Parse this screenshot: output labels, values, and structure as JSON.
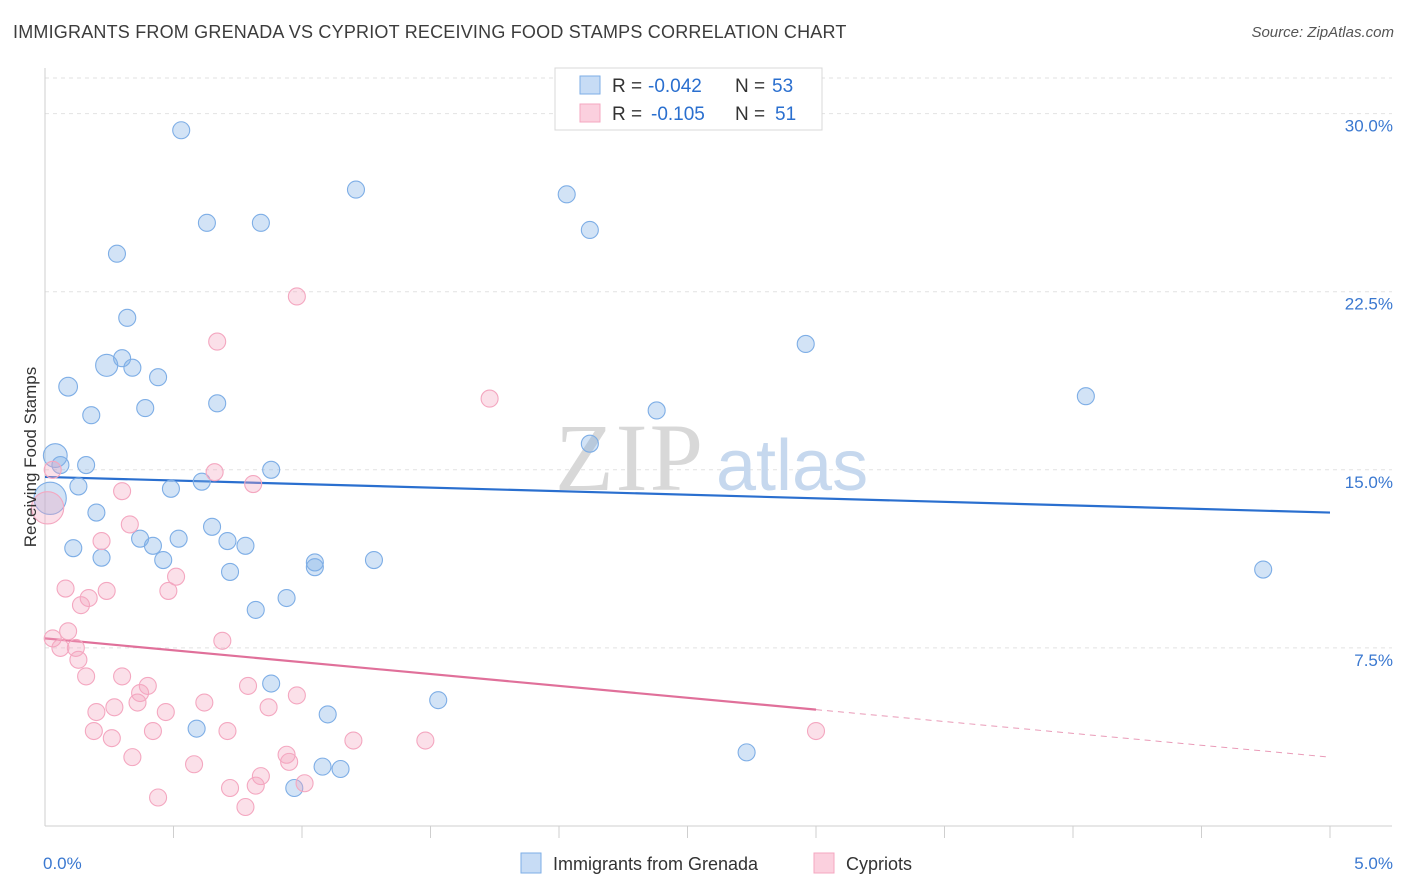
{
  "title": "IMMIGRANTS FROM GRENADA VS CYPRIOT RECEIVING FOOD STAMPS CORRELATION CHART",
  "source": "Source: ZipAtlas.com",
  "watermark": {
    "zip": "ZIP",
    "atlas": "atlas"
  },
  "legend_box": {
    "rows": [
      {
        "r_label": "R =",
        "r_value": "-0.042",
        "n_label": "N =",
        "n_value": "53"
      },
      {
        "r_label": "R =",
        "r_value": "-0.105",
        "n_label": "N =",
        "n_value": "51"
      }
    ]
  },
  "chart_data": {
    "type": "scatter",
    "title": "IMMIGRANTS FROM GRENADA VS CYPRIOT RECEIVING FOOD STAMPS CORRELATION CHART",
    "xlabel": "",
    "ylabel": "Receiving Food Stamps",
    "xlim": [
      0,
      5
    ],
    "ylim": [
      0,
      31.5
    ],
    "x_tick_labels": [
      {
        "value": 0,
        "label": "0.0%"
      },
      {
        "value": 5,
        "label": "5.0%"
      }
    ],
    "y_tick_labels": [
      {
        "value": 7.5,
        "label": "7.5%"
      },
      {
        "value": 15,
        "label": "15.0%"
      },
      {
        "value": 22.5,
        "label": "22.5%"
      },
      {
        "value": 30,
        "label": "30.0%"
      }
    ],
    "grid": true,
    "legend_position": "bottom",
    "series": [
      {
        "name": "Immigrants from Grenada",
        "color": "#7eaee6",
        "line_color": "#2a6fcf",
        "r": -0.042,
        "n": 53,
        "trend": {
          "x": [
            0,
            5
          ],
          "y": [
            14.7,
            13.2
          ],
          "dashed_from": null
        },
        "points": [
          {
            "x": 0.53,
            "y": 29.3,
            "s": 1
          },
          {
            "x": 1.21,
            "y": 26.8,
            "s": 1
          },
          {
            "x": 2.03,
            "y": 26.6,
            "s": 1
          },
          {
            "x": 0.63,
            "y": 25.4,
            "s": 1
          },
          {
            "x": 0.84,
            "y": 25.4,
            "s": 1
          },
          {
            "x": 2.12,
            "y": 25.1,
            "s": 1
          },
          {
            "x": 0.28,
            "y": 24.1,
            "s": 1
          },
          {
            "x": 0.32,
            "y": 21.4,
            "s": 1
          },
          {
            "x": 2.96,
            "y": 20.3,
            "s": 1
          },
          {
            "x": 0.3,
            "y": 19.7,
            "s": 1
          },
          {
            "x": 0.24,
            "y": 19.4,
            "s": 1.3
          },
          {
            "x": 0.34,
            "y": 19.3,
            "s": 1
          },
          {
            "x": 0.44,
            "y": 18.9,
            "s": 1
          },
          {
            "x": 0.09,
            "y": 18.5,
            "s": 1.1
          },
          {
            "x": 4.05,
            "y": 18.1,
            "s": 1
          },
          {
            "x": 0.67,
            "y": 17.8,
            "s": 1
          },
          {
            "x": 0.39,
            "y": 17.6,
            "s": 1
          },
          {
            "x": 2.38,
            "y": 17.5,
            "s": 1
          },
          {
            "x": 0.18,
            "y": 17.3,
            "s": 1
          },
          {
            "x": 2.12,
            "y": 16.1,
            "s": 1
          },
          {
            "x": 0.04,
            "y": 15.6,
            "s": 1.4
          },
          {
            "x": 0.06,
            "y": 15.2,
            "s": 1
          },
          {
            "x": 0.16,
            "y": 15.2,
            "s": 1
          },
          {
            "x": 0.88,
            "y": 15.0,
            "s": 1
          },
          {
            "x": 0.61,
            "y": 14.5,
            "s": 1
          },
          {
            "x": 0.13,
            "y": 14.3,
            "s": 1
          },
          {
            "x": 0.49,
            "y": 14.2,
            "s": 1
          },
          {
            "x": 0.02,
            "y": 13.8,
            "s": 1.9
          },
          {
            "x": 0.2,
            "y": 13.2,
            "s": 1
          },
          {
            "x": 0.65,
            "y": 12.6,
            "s": 1
          },
          {
            "x": 0.37,
            "y": 12.1,
            "s": 1
          },
          {
            "x": 0.52,
            "y": 12.1,
            "s": 1
          },
          {
            "x": 0.71,
            "y": 12.0,
            "s": 1
          },
          {
            "x": 0.42,
            "y": 11.8,
            "s": 1
          },
          {
            "x": 0.78,
            "y": 11.8,
            "s": 1
          },
          {
            "x": 0.11,
            "y": 11.7,
            "s": 1
          },
          {
            "x": 0.22,
            "y": 11.3,
            "s": 1
          },
          {
            "x": 1.05,
            "y": 11.1,
            "s": 1
          },
          {
            "x": 1.28,
            "y": 11.2,
            "s": 1
          },
          {
            "x": 0.46,
            "y": 11.2,
            "s": 1
          },
          {
            "x": 1.05,
            "y": 10.9,
            "s": 1
          },
          {
            "x": 0.72,
            "y": 10.7,
            "s": 1
          },
          {
            "x": 4.74,
            "y": 10.8,
            "s": 1
          },
          {
            "x": 0.94,
            "y": 9.6,
            "s": 1
          },
          {
            "x": 0.82,
            "y": 9.1,
            "s": 1
          },
          {
            "x": 0.88,
            "y": 6.0,
            "s": 1
          },
          {
            "x": 1.53,
            "y": 5.3,
            "s": 1
          },
          {
            "x": 1.1,
            "y": 4.7,
            "s": 1
          },
          {
            "x": 0.59,
            "y": 4.1,
            "s": 1
          },
          {
            "x": 2.73,
            "y": 3.1,
            "s": 1
          },
          {
            "x": 1.08,
            "y": 2.5,
            "s": 1
          },
          {
            "x": 1.15,
            "y": 2.4,
            "s": 1
          },
          {
            "x": 0.97,
            "y": 1.6,
            "s": 1
          }
        ]
      },
      {
        "name": "Cypriots",
        "color": "#f4a7c0",
        "line_color": "#e0709a",
        "r": -0.105,
        "n": 51,
        "trend": {
          "x": [
            0,
            5
          ],
          "y": [
            7.9,
            2.9
          ],
          "dashed_from": 3.0
        },
        "points": [
          {
            "x": 0.98,
            "y": 22.3,
            "s": 1
          },
          {
            "x": 0.67,
            "y": 20.4,
            "s": 1
          },
          {
            "x": 1.73,
            "y": 18.0,
            "s": 1
          },
          {
            "x": 0.03,
            "y": 15.0,
            "s": 1
          },
          {
            "x": 0.66,
            "y": 14.9,
            "s": 1
          },
          {
            "x": 0.81,
            "y": 14.4,
            "s": 1
          },
          {
            "x": 0.3,
            "y": 14.1,
            "s": 1
          },
          {
            "x": 0.01,
            "y": 13.4,
            "s": 1.9
          },
          {
            "x": 0.33,
            "y": 12.7,
            "s": 1
          },
          {
            "x": 0.22,
            "y": 12.0,
            "s": 1
          },
          {
            "x": 0.51,
            "y": 10.5,
            "s": 1
          },
          {
            "x": 0.08,
            "y": 10.0,
            "s": 1
          },
          {
            "x": 0.24,
            "y": 9.9,
            "s": 1
          },
          {
            "x": 0.48,
            "y": 9.9,
            "s": 1
          },
          {
            "x": 0.17,
            "y": 9.6,
            "s": 1
          },
          {
            "x": 0.14,
            "y": 9.3,
            "s": 1
          },
          {
            "x": 0.09,
            "y": 8.2,
            "s": 1
          },
          {
            "x": 0.03,
            "y": 7.9,
            "s": 1
          },
          {
            "x": 0.69,
            "y": 7.8,
            "s": 1
          },
          {
            "x": 0.06,
            "y": 7.5,
            "s": 1
          },
          {
            "x": 0.12,
            "y": 7.5,
            "s": 1
          },
          {
            "x": 0.13,
            "y": 7.0,
            "s": 1
          },
          {
            "x": 0.16,
            "y": 6.3,
            "s": 1
          },
          {
            "x": 0.3,
            "y": 6.3,
            "s": 1
          },
          {
            "x": 0.4,
            "y": 5.9,
            "s": 1
          },
          {
            "x": 0.79,
            "y": 5.9,
            "s": 1
          },
          {
            "x": 0.37,
            "y": 5.6,
            "s": 1
          },
          {
            "x": 0.98,
            "y": 5.5,
            "s": 1
          },
          {
            "x": 0.36,
            "y": 5.2,
            "s": 1
          },
          {
            "x": 0.62,
            "y": 5.2,
            "s": 1
          },
          {
            "x": 0.27,
            "y": 5.0,
            "s": 1
          },
          {
            "x": 0.87,
            "y": 5.0,
            "s": 1
          },
          {
            "x": 0.2,
            "y": 4.8,
            "s": 1
          },
          {
            "x": 0.47,
            "y": 4.8,
            "s": 1
          },
          {
            "x": 0.19,
            "y": 4.0,
            "s": 1
          },
          {
            "x": 0.42,
            "y": 4.0,
            "s": 1
          },
          {
            "x": 0.71,
            "y": 4.0,
            "s": 1
          },
          {
            "x": 3.0,
            "y": 4.0,
            "s": 1
          },
          {
            "x": 0.26,
            "y": 3.7,
            "s": 1
          },
          {
            "x": 1.2,
            "y": 3.6,
            "s": 1
          },
          {
            "x": 1.48,
            "y": 3.6,
            "s": 1
          },
          {
            "x": 0.94,
            "y": 3.0,
            "s": 1
          },
          {
            "x": 0.34,
            "y": 2.9,
            "s": 1
          },
          {
            "x": 0.95,
            "y": 2.7,
            "s": 1
          },
          {
            "x": 0.58,
            "y": 2.6,
            "s": 1
          },
          {
            "x": 0.84,
            "y": 2.1,
            "s": 1
          },
          {
            "x": 1.01,
            "y": 1.8,
            "s": 1
          },
          {
            "x": 0.72,
            "y": 1.6,
            "s": 1
          },
          {
            "x": 0.82,
            "y": 1.7,
            "s": 1
          },
          {
            "x": 0.44,
            "y": 1.2,
            "s": 1
          },
          {
            "x": 0.78,
            "y": 0.8,
            "s": 1
          }
        ]
      }
    ]
  }
}
